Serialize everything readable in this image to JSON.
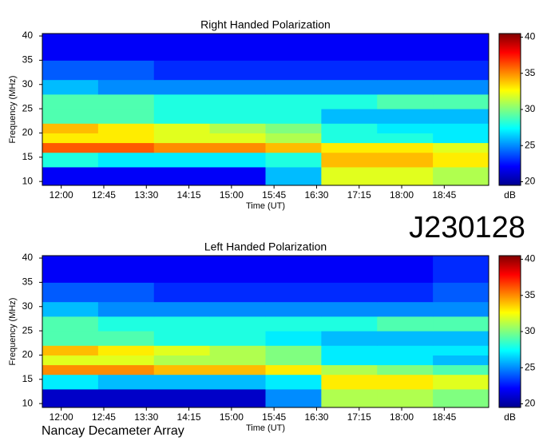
{
  "title": "J230128",
  "footer": "Nancay Decameter Array",
  "chart_data": [
    {
      "type": "heatmap",
      "title": "Right Handed Polarization",
      "x_label": "Time (UT)",
      "y_label": "Frequency (MHz)",
      "colorbar_label": "dB",
      "colormap": "jet",
      "xlim": [
        700,
        1172
      ],
      "ylim": [
        9.2,
        40.5
      ],
      "zlim": [
        19.5,
        40.5
      ],
      "xticks": [
        {
          "value": 720,
          "label": "12:00"
        },
        {
          "value": 765,
          "label": "12:45"
        },
        {
          "value": 810,
          "label": "13:30"
        },
        {
          "value": 855,
          "label": "14:15"
        },
        {
          "value": 900,
          "label": "15:00"
        },
        {
          "value": 945,
          "label": "15:45"
        },
        {
          "value": 990,
          "label": "16:30"
        },
        {
          "value": 1035,
          "label": "17:15"
        },
        {
          "value": 1080,
          "label": "18:00"
        },
        {
          "value": 1125,
          "label": "18:45"
        }
      ],
      "yticks": [
        10,
        15,
        20,
        25,
        30,
        35,
        40
      ],
      "zticks": [
        20,
        25,
        30,
        35,
        40
      ],
      "xbins": [
        700,
        759,
        818,
        877,
        936,
        995,
        1054,
        1113,
        1172
      ],
      "ybins": [
        9.2,
        13,
        16,
        18,
        20,
        22,
        25,
        28,
        31,
        35,
        40.5
      ],
      "z": [
        [
          22,
          22,
          22,
          22,
          26,
          32,
          32,
          31
        ],
        [
          28,
          27,
          27,
          27,
          28,
          34,
          34,
          33
        ],
        [
          36,
          36,
          35,
          35,
          34,
          33,
          33,
          32
        ],
        [
          33,
          33,
          32,
          32,
          31,
          28,
          28,
          27
        ],
        [
          34,
          33,
          32,
          31,
          30,
          28,
          27,
          27
        ],
        [
          29,
          29,
          28,
          28,
          28,
          26,
          26,
          26
        ],
        [
          29,
          29,
          28,
          28,
          28,
          28,
          29,
          29
        ],
        [
          26,
          25,
          25,
          25,
          25,
          25,
          25,
          25
        ],
        [
          24,
          24,
          23,
          23,
          23,
          23,
          23,
          23
        ],
        [
          22,
          22,
          22,
          22,
          22,
          22,
          22,
          22
        ]
      ]
    },
    {
      "type": "heatmap",
      "title": "Left Handed Polarization",
      "x_label": "Time (UT)",
      "y_label": "Frequency (MHz)",
      "colorbar_label": "dB",
      "colormap": "jet",
      "xlim": [
        700,
        1172
      ],
      "ylim": [
        9.2,
        40.5
      ],
      "zlim": [
        19.5,
        40.5
      ],
      "xticks": [
        {
          "value": 720,
          "label": "12:00"
        },
        {
          "value": 765,
          "label": "12:45"
        },
        {
          "value": 810,
          "label": "13:30"
        },
        {
          "value": 855,
          "label": "14:15"
        },
        {
          "value": 900,
          "label": "15:00"
        },
        {
          "value": 945,
          "label": "15:45"
        },
        {
          "value": 990,
          "label": "16:30"
        },
        {
          "value": 1035,
          "label": "17:15"
        },
        {
          "value": 1080,
          "label": "18:00"
        },
        {
          "value": 1125,
          "label": "18:45"
        }
      ],
      "yticks": [
        10,
        15,
        20,
        25,
        30,
        35,
        40
      ],
      "zticks": [
        20,
        25,
        30,
        35,
        40
      ],
      "xbins": [
        700,
        759,
        818,
        877,
        936,
        995,
        1054,
        1113,
        1172
      ],
      "ybins": [
        9.2,
        13,
        16,
        18,
        20,
        22,
        25,
        28,
        31,
        35,
        40.5
      ],
      "z": [
        [
          21,
          21,
          21,
          21,
          25,
          31,
          31,
          30
        ],
        [
          27,
          26,
          26,
          26,
          27,
          33,
          33,
          32
        ],
        [
          35,
          35,
          34,
          34,
          33,
          31,
          30,
          29
        ],
        [
          32,
          32,
          31,
          31,
          30,
          27,
          27,
          26
        ],
        [
          34,
          33,
          32,
          31,
          30,
          27,
          27,
          27
        ],
        [
          29,
          29,
          28,
          28,
          27,
          26,
          26,
          26
        ],
        [
          29,
          28,
          28,
          28,
          28,
          28,
          29,
          29
        ],
        [
          26,
          25,
          25,
          25,
          25,
          25,
          25,
          25
        ],
        [
          24,
          24,
          23,
          23,
          23,
          23,
          23,
          24
        ],
        [
          22,
          22,
          22,
          22,
          22,
          22,
          22,
          23
        ]
      ]
    }
  ]
}
